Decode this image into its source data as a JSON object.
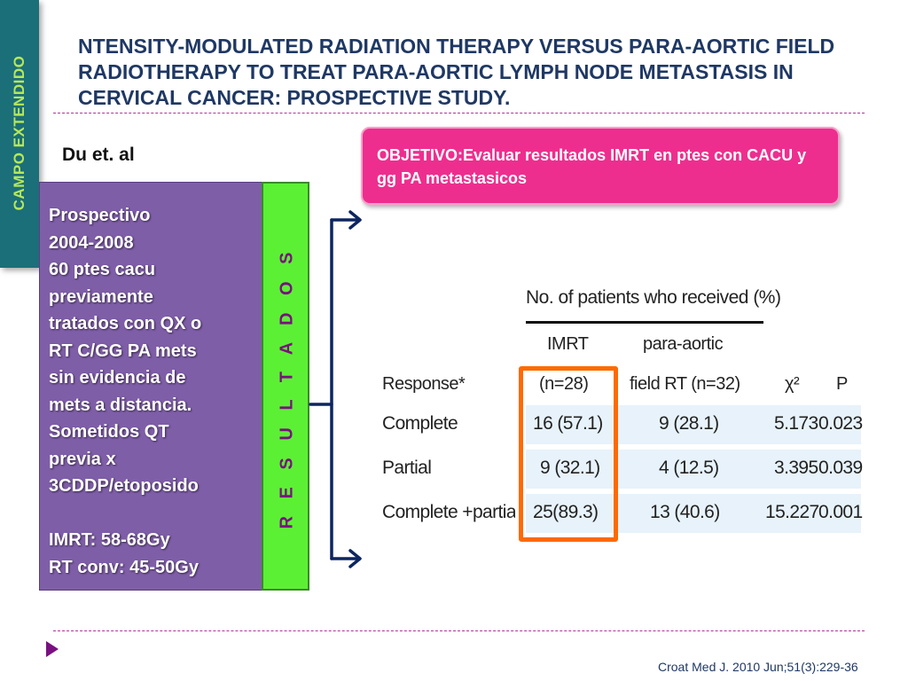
{
  "side_tab": {
    "label": "CAMPO EXTENDIDO"
  },
  "title": "NTENSITY-MODULATED RADIATION THERAPY VERSUS PARA-AORTIC FIELD RADIOTHERAPY TO TREAT PARA-AORTIC LYMPH NODE METASTASIS IN CERVICAL CANCER: PROSPECTIVE STUDY.",
  "authors": "Du et. al",
  "objective": "OBJETIVO:Evaluar resultados IMRT  en ptes con CACU y gg PA metastasicos",
  "study_box": {
    "lines": [
      "Prospectivo",
      "2004-2008",
      "60 ptes cacu",
      "previamente",
      "tratados con QX o",
      "RT  C/GG PA mets",
      "sin evidencia de",
      "mets a distancia.",
      "Sometidos  QT",
      "previa  x",
      "3CDDP/etoposido"
    ],
    "dose_lines": [
      "IMRT:  58-68Gy",
      "RT conv: 45-50Gy"
    ]
  },
  "results_label": "R E S U L T A D O S",
  "table": {
    "header_span": "No. of patients who received (%)",
    "col_imrt": [
      "IMRT",
      "(n=28)"
    ],
    "col_pa": [
      "para-aortic",
      "field RT (n=32)"
    ],
    "col_response": "Response*",
    "col_chi": "χ²",
    "col_p": "P",
    "rows": [
      {
        "response": "Complete",
        "imrt": "16 (57.1)",
        "pa": "9 (28.1)",
        "chi": "5.173",
        "p": "0.023"
      },
      {
        "response": "Partial",
        "imrt": "9 (32.1)",
        "pa": "4 (12.5)",
        "chi": "3.395",
        "p": "0.039"
      },
      {
        "response": "Complete +partia",
        "imrt": "25(89.3)",
        "pa": "13 (40.6)",
        "chi": "15.227",
        "p": "0.001"
      }
    ]
  },
  "citation": "Croat Med J. 2010 Jun;51(3):229-36",
  "colors": {
    "side_tab": "#1b6f78",
    "objective_box": "#ee2e8e",
    "purple_box": "#7f5ea8",
    "green_box": "#5cf034",
    "highlight": "#ff6a00",
    "title": "#1f3864"
  },
  "icons": {
    "bracket": "bracket-arrows-icon",
    "bullet": "play-triangle-icon"
  }
}
